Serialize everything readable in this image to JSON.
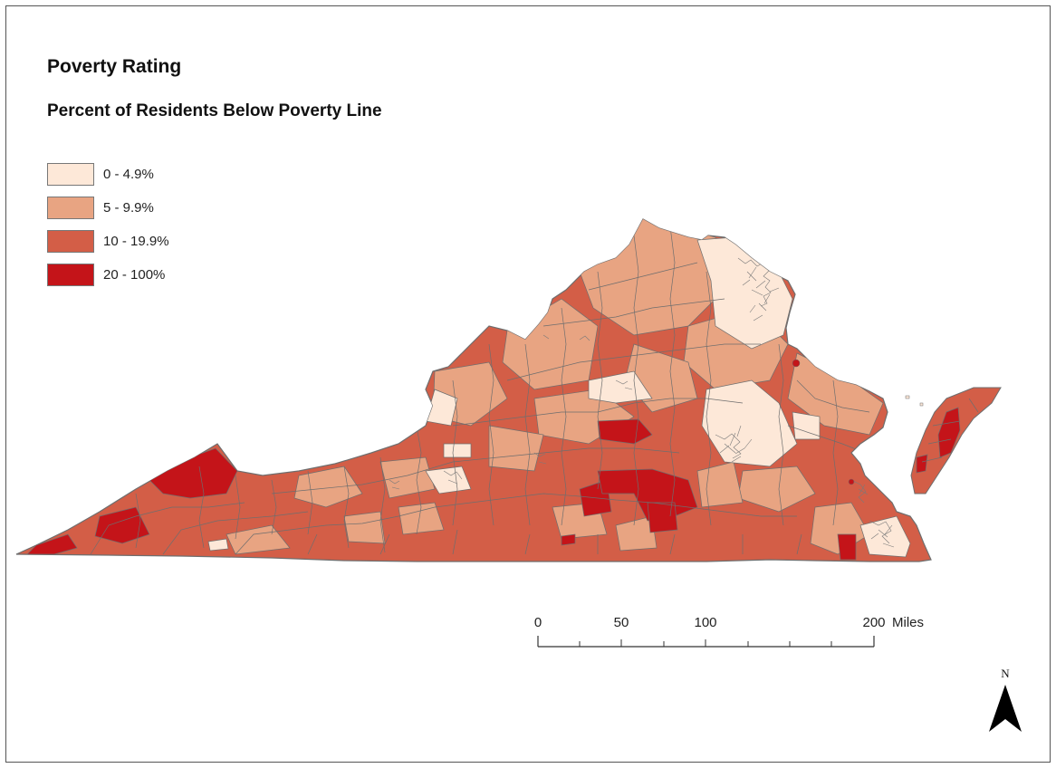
{
  "title": "Poverty Rating",
  "subtitle": "Percent of Residents Below Poverty Line",
  "legend": [
    {
      "label": "0 - 4.9%",
      "color": "#fde8d8"
    },
    {
      "label": "5 - 9.9%",
      "color": "#e8a482"
    },
    {
      "label": "10 - 19.9%",
      "color": "#d35e47"
    },
    {
      "label": "20 - 100%",
      "color": "#c41419"
    }
  ],
  "scale_bar": {
    "ticks": [
      "0",
      "50",
      "100",
      "200"
    ],
    "unit": "Miles"
  },
  "north_arrow": {
    "label": "N"
  },
  "colors": {
    "boundary": "#6e6e6e",
    "frame": "#555555",
    "dense_tracts": "#7a7a7a"
  }
}
